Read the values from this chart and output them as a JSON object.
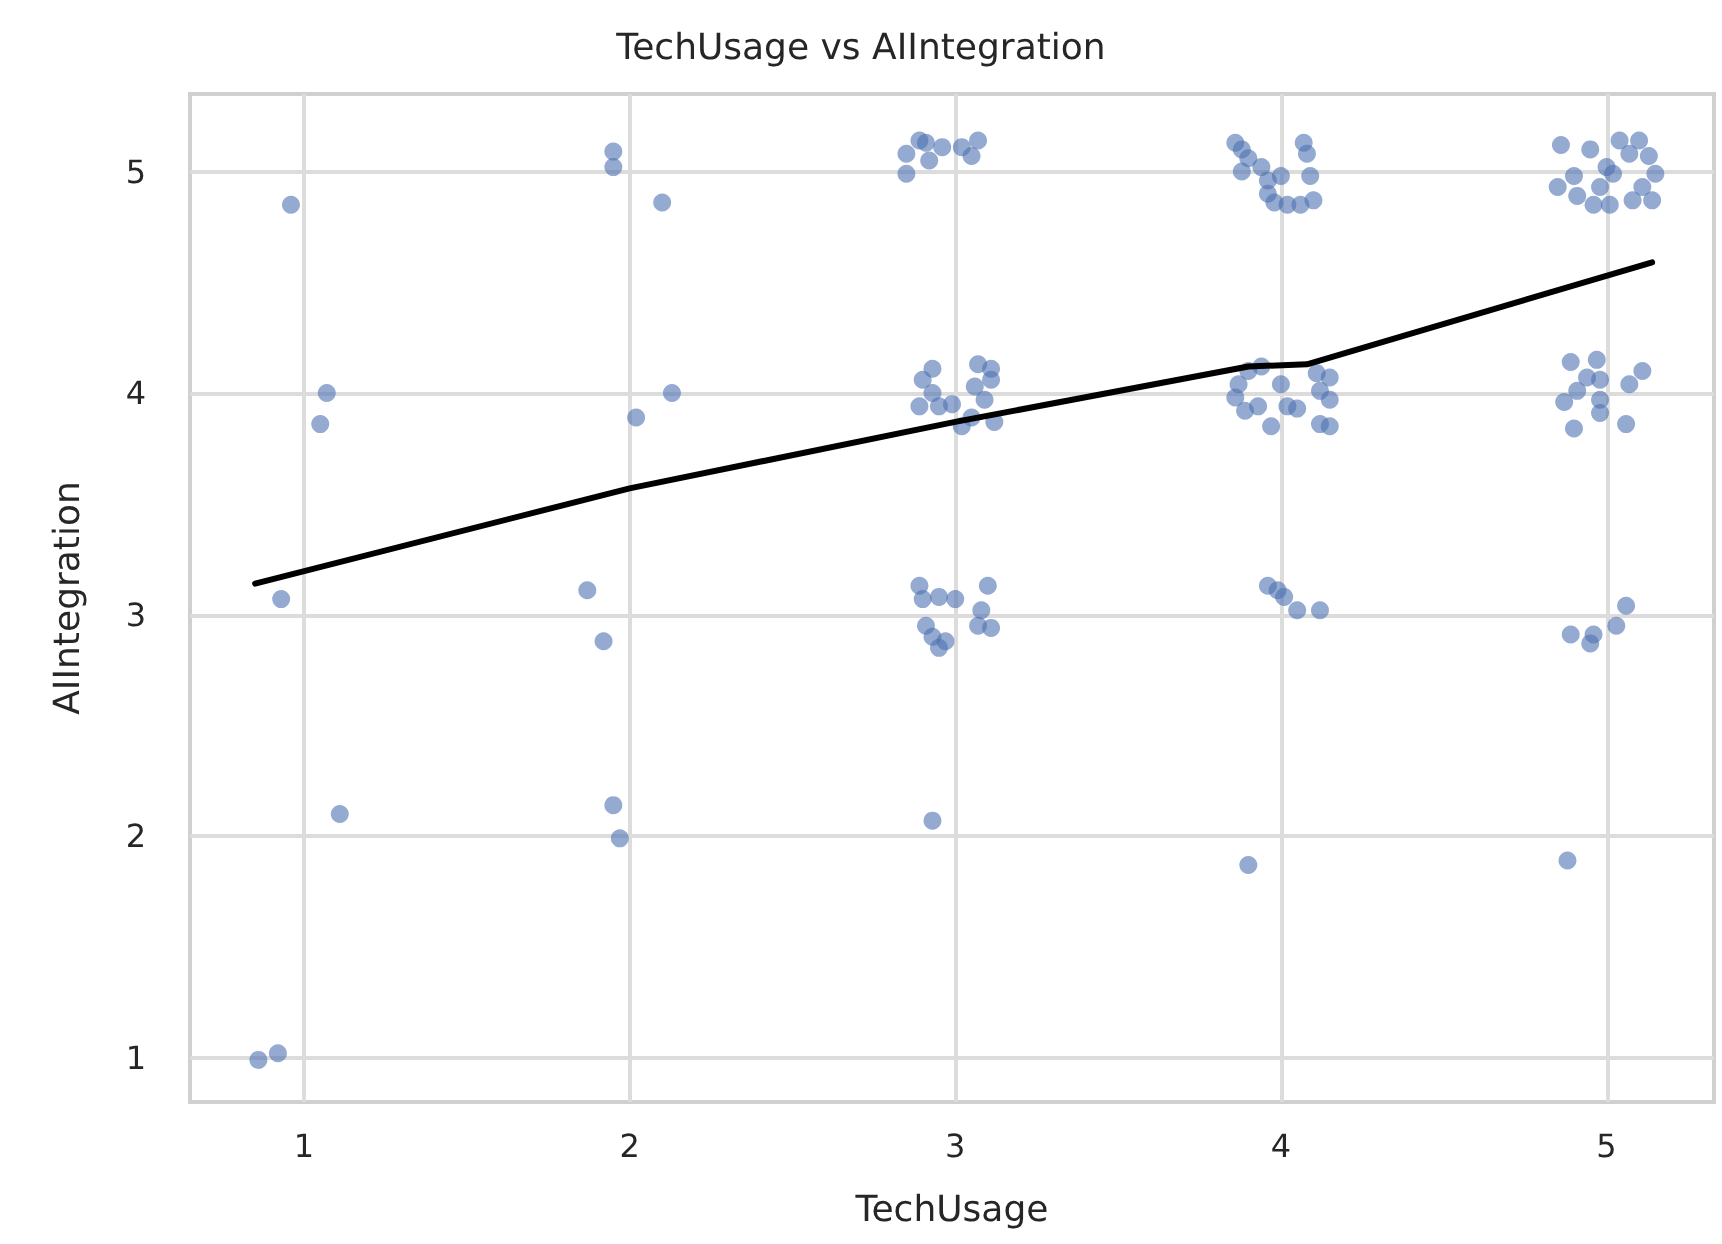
{
  "chart_data": {
    "type": "scatter",
    "title": "TechUsage vs AIIntegration",
    "xlabel": "TechUsage",
    "ylabel": "AIIntegration",
    "xlim": [
      0.65,
      5.33
    ],
    "ylim": [
      0.8,
      5.35
    ],
    "xticks": [
      1,
      2,
      3,
      4,
      5
    ],
    "yticks": [
      1,
      2,
      3,
      4,
      5
    ],
    "grid": true,
    "series": [
      {
        "type": "scatter",
        "marker": "circle",
        "color": "#4c72b0",
        "x": [
          0.96,
          1.07,
          1.05,
          0.93,
          1.11,
          0.86,
          0.92,
          1.95,
          1.95,
          2.1,
          2.13,
          2.02,
          1.87,
          1.92,
          1.95,
          1.97,
          2.85,
          2.85,
          2.89,
          2.91,
          2.92,
          2.96,
          3.02,
          3.05,
          3.07,
          2.93,
          2.9,
          2.93,
          2.89,
          2.95,
          2.99,
          3.02,
          3.07,
          3.11,
          3.06,
          3.11,
          3.09,
          3.12,
          3.05,
          2.89,
          2.9,
          2.95,
          3.0,
          3.1,
          3.08,
          2.91,
          2.93,
          2.95,
          2.97,
          3.07,
          3.11,
          2.93,
          3.86,
          3.88,
          3.9,
          3.88,
          3.94,
          3.96,
          4.0,
          3.96,
          3.98,
          4.02,
          4.06,
          4.1,
          4.07,
          4.08,
          4.09,
          3.9,
          3.87,
          3.86,
          3.89,
          3.93,
          3.97,
          4.0,
          4.02,
          4.05,
          4.11,
          4.15,
          4.12,
          4.15,
          4.12,
          4.15,
          3.94,
          3.96,
          3.99,
          4.01,
          4.05,
          4.12,
          3.9,
          4.86,
          4.95,
          5.04,
          5.1,
          5.13,
          5.15,
          5.0,
          5.02,
          4.9,
          4.85,
          4.91,
          4.96,
          5.01,
          5.08,
          5.14,
          5.07,
          4.98,
          5.11,
          4.89,
          4.97,
          4.94,
          4.98,
          4.91,
          4.87,
          4.98,
          4.9,
          4.98,
          5.06,
          5.07,
          5.11,
          4.89,
          4.95,
          4.96,
          5.03,
          5.06,
          4.88
        ],
        "values": [
          4.85,
          4.0,
          3.86,
          3.07,
          2.1,
          0.99,
          1.02,
          5.09,
          5.02,
          4.86,
          4.0,
          3.89,
          3.11,
          2.88,
          2.14,
          1.99,
          5.08,
          4.99,
          5.14,
          5.13,
          5.05,
          5.11,
          5.11,
          5.07,
          5.14,
          4.11,
          4.06,
          4.0,
          3.94,
          3.94,
          3.95,
          3.85,
          4.13,
          4.11,
          4.03,
          4.06,
          3.97,
          3.87,
          3.89,
          3.13,
          3.07,
          3.08,
          3.07,
          3.13,
          3.02,
          2.95,
          2.9,
          2.85,
          2.88,
          2.95,
          2.94,
          2.07,
          5.13,
          5.1,
          5.06,
          5.0,
          5.02,
          4.96,
          4.98,
          4.9,
          4.86,
          4.85,
          4.85,
          4.87,
          5.13,
          5.08,
          4.98,
          4.1,
          4.04,
          3.98,
          3.92,
          3.94,
          3.85,
          4.04,
          3.94,
          3.93,
          4.09,
          4.07,
          4.01,
          3.97,
          3.86,
          3.85,
          4.12,
          3.13,
          3.11,
          3.08,
          3.02,
          3.02,
          1.87,
          5.12,
          5.1,
          5.14,
          5.14,
          5.07,
          4.99,
          5.02,
          4.99,
          4.98,
          4.93,
          4.89,
          4.85,
          4.85,
          4.87,
          4.87,
          5.08,
          4.93,
          4.93,
          4.14,
          4.15,
          4.07,
          4.06,
          4.01,
          3.96,
          3.97,
          3.84,
          3.91,
          3.86,
          4.04,
          4.1,
          2.91,
          2.87,
          2.91,
          2.95,
          3.04,
          1.89
        ]
      },
      {
        "type": "line",
        "marker": "none",
        "line_style": "solid",
        "color": "#000000",
        "x": [
          0.85,
          2,
          3,
          3.9,
          4.08,
          5.14
        ],
        "values": [
          3.14,
          3.57,
          3.87,
          4.12,
          4.13,
          4.59
        ]
      }
    ]
  }
}
